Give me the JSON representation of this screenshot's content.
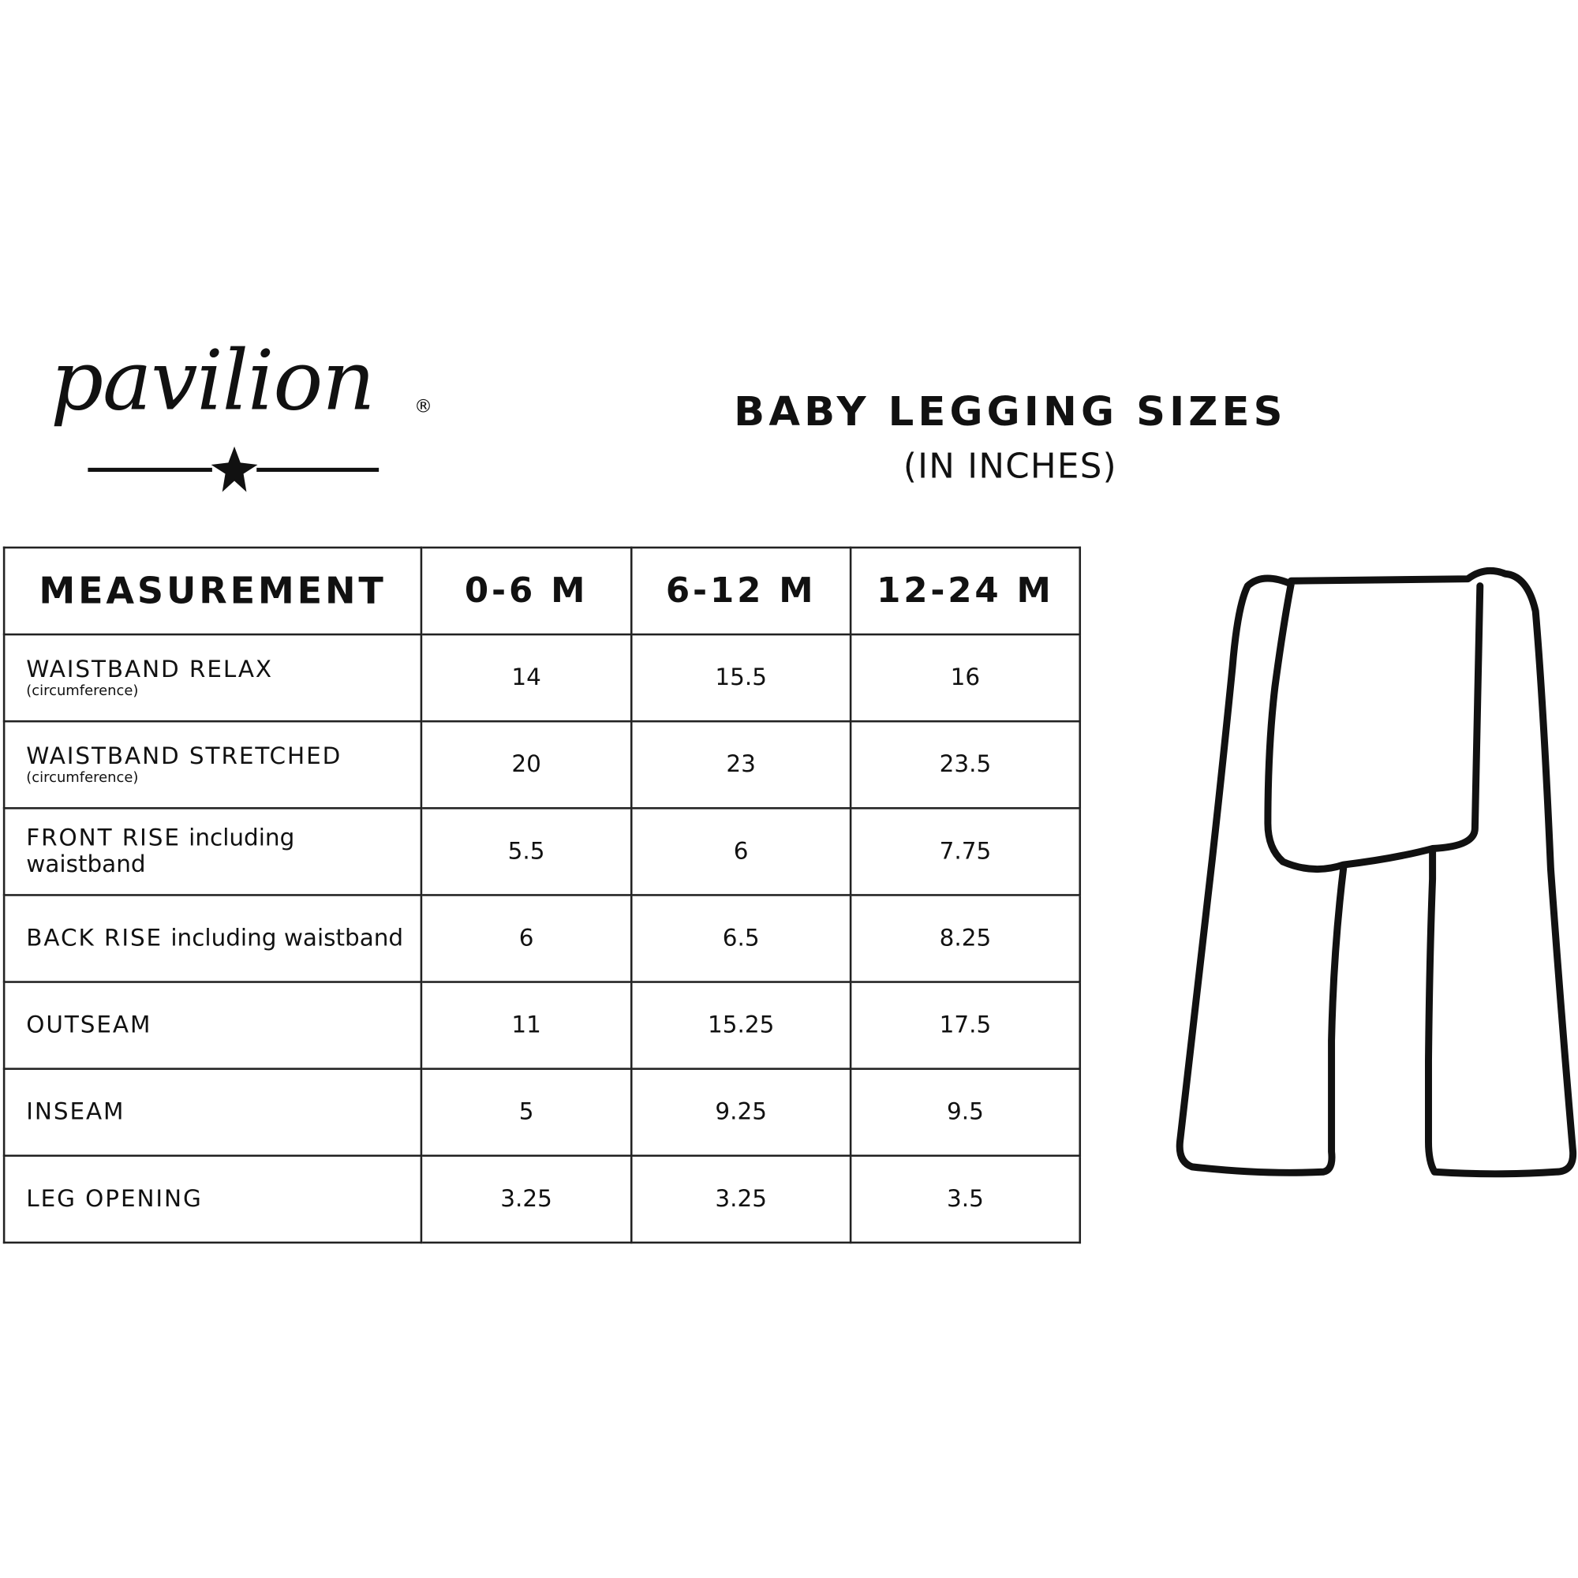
{
  "logo": {
    "brand": "pavilion",
    "registered": "®"
  },
  "header": {
    "title": "BABY LEGGING SIZES",
    "subtitle": "(IN INCHES)"
  },
  "table": {
    "columns": [
      "MEASUREMENT",
      "0-6 M",
      "6-12 M",
      "12-24 M"
    ],
    "rows": [
      {
        "label": "WAISTBAND RELAX",
        "note": "(circumference)",
        "suffix": "",
        "values": [
          "14",
          "15.5",
          "16"
        ]
      },
      {
        "label": "WAISTBAND STRETCHED",
        "note": "(circumference)",
        "suffix": "",
        "values": [
          "20",
          "23",
          "23.5"
        ]
      },
      {
        "label": "FRONT RISE",
        "note": "",
        "suffix": "including waistband",
        "values": [
          "5.5",
          "6",
          "7.75"
        ]
      },
      {
        "label": "BACK RISE",
        "note": "",
        "suffix": "including waistband",
        "values": [
          "6",
          "6.5",
          "8.25"
        ]
      },
      {
        "label": "OUTSEAM",
        "note": "",
        "suffix": "",
        "values": [
          "11",
          "15.25",
          "17.5"
        ]
      },
      {
        "label": "INSEAM",
        "note": "",
        "suffix": "",
        "values": [
          "5",
          "9.25",
          "9.5"
        ]
      },
      {
        "label": "LEG OPENING",
        "note": "",
        "suffix": "",
        "values": [
          "3.25",
          "3.25",
          "3.5"
        ]
      }
    ]
  }
}
